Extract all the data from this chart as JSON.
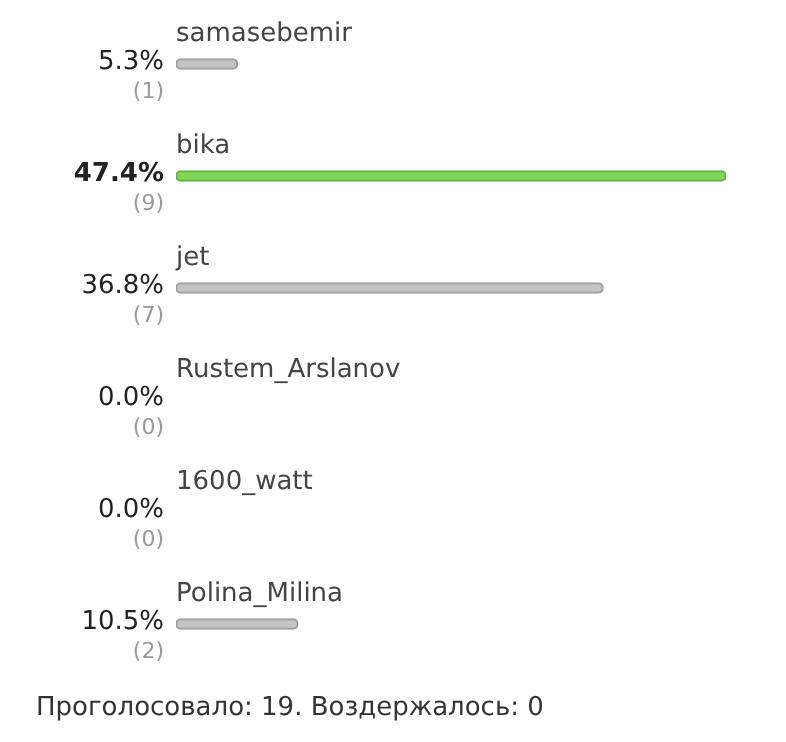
{
  "chart_data": {
    "type": "bar",
    "orientation": "horizontal",
    "categories": [
      "samasebemir",
      "bika",
      "jet",
      "Rustem_Arslanov",
      "1600_watt",
      "Polina_Milina"
    ],
    "values": [
      5.3,
      47.4,
      36.8,
      0.0,
      0.0,
      10.5
    ],
    "colors": [
      "#c4c4c4",
      "#7fd957",
      "#c4c4c4",
      "#c4c4c4",
      "#c4c4c4",
      "#c4c4c4"
    ],
    "value_labels": [
      "5.3%",
      "47.4%",
      "36.8%",
      "0.0%",
      "0.0%",
      "10.5%"
    ],
    "annotations": [
      "(1)",
      "(9)",
      "(7)",
      "(0)",
      "(0)",
      "(2)",
      "Проголосовало: 19. Воздержалось: 0"
    ],
    "legend": false
  }
}
